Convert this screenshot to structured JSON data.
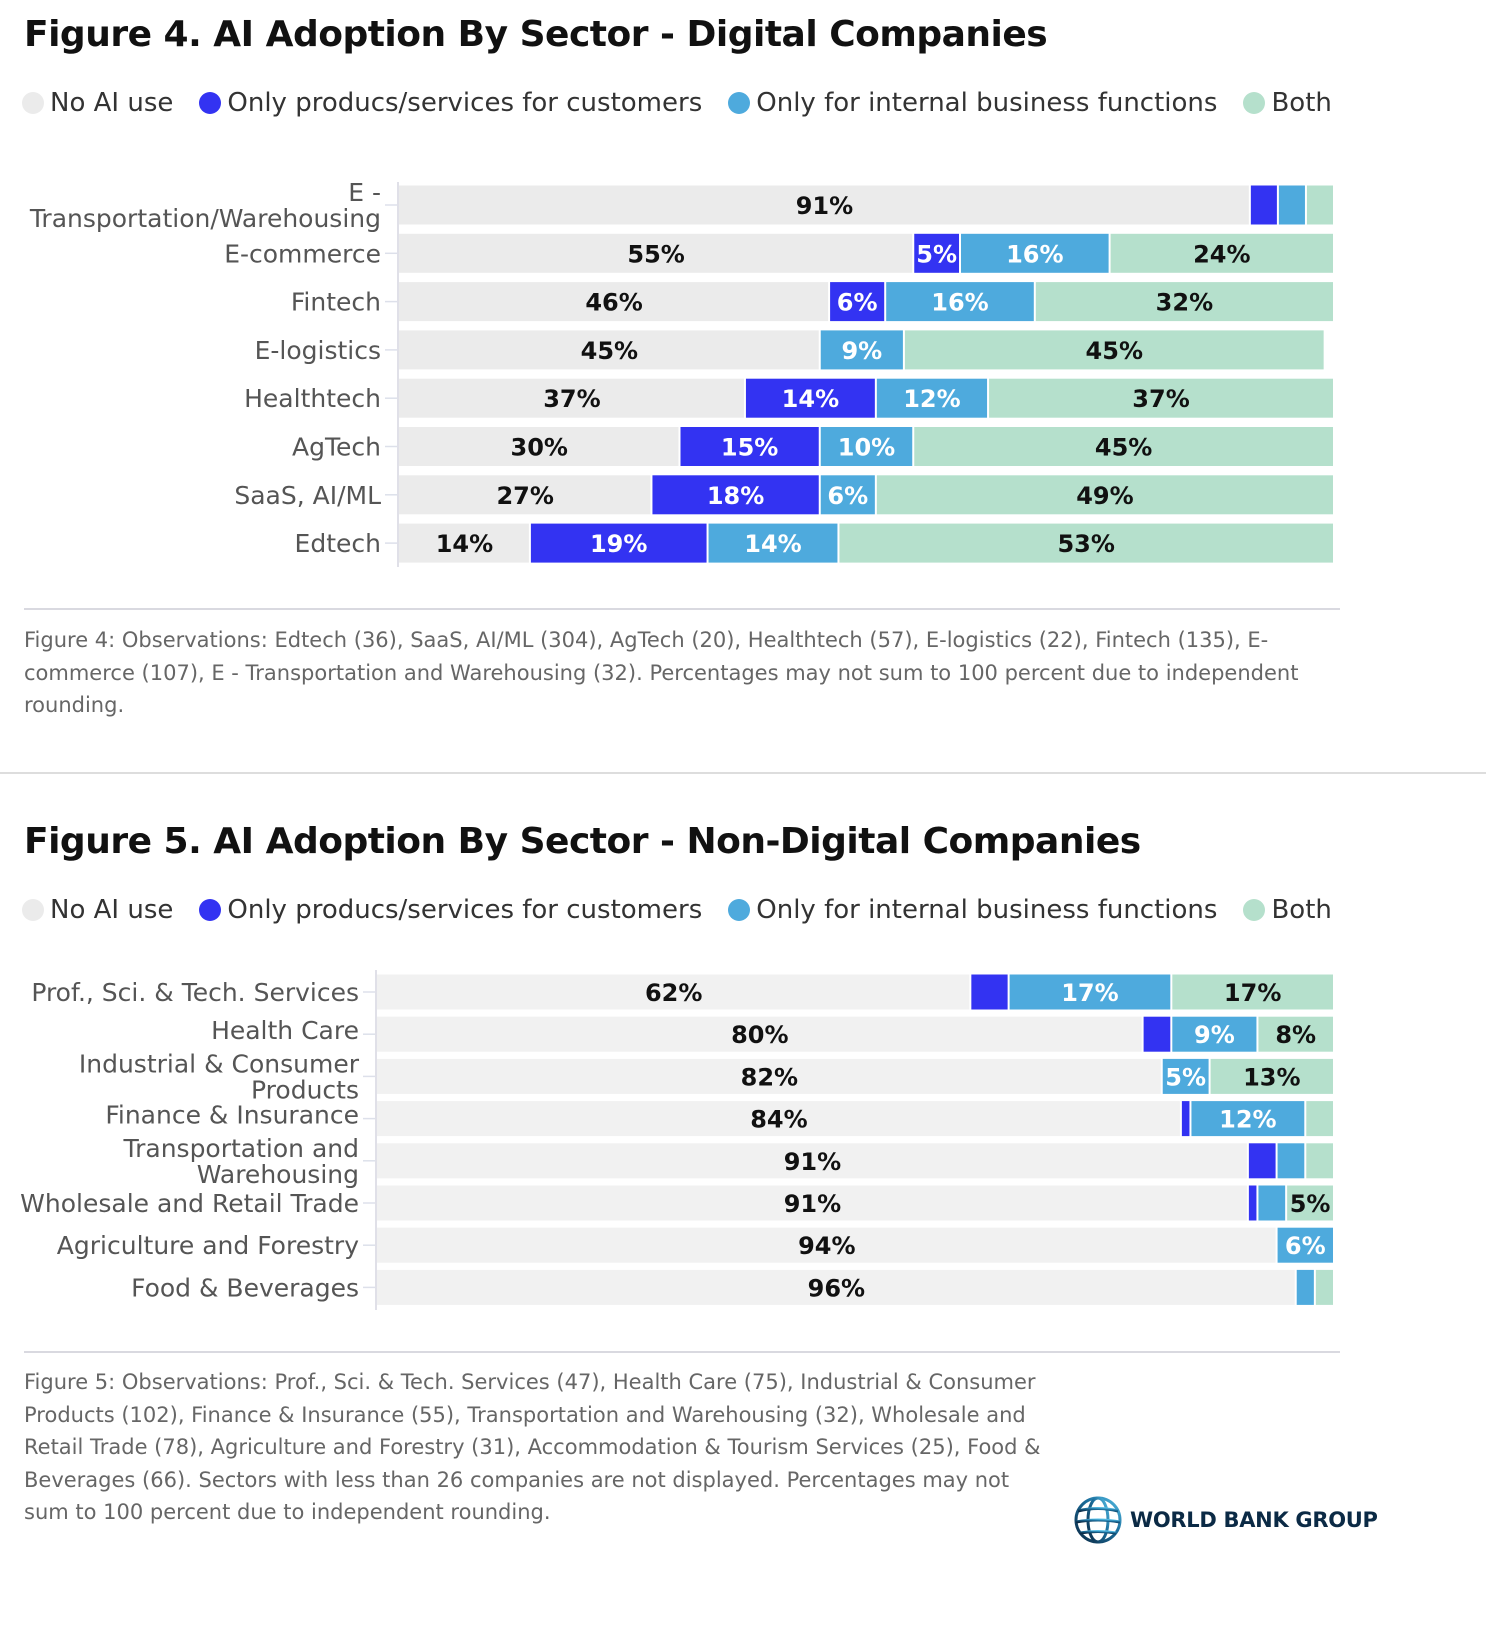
{
  "colors": {
    "no_ai": "#ebebeb",
    "no_ai_fig5": "#f1f1f1",
    "customers": "#3333f2",
    "internal": "#4eaadd",
    "both": "#b5e0cc"
  },
  "legend": [
    {
      "key": "no_ai",
      "label": "No AI use",
      "color": "#ebebeb"
    },
    {
      "key": "customers",
      "label": "Only producs/services for customers",
      "color": "#3333f2"
    },
    {
      "key": "internal",
      "label": "Only for internal business functions",
      "color": "#4eaadd"
    },
    {
      "key": "both",
      "label": "Both",
      "color": "#b5e0cc"
    }
  ],
  "figure4": {
    "title": "Figure 4. AI Adoption By Sector - Digital Companies",
    "footnote": "Figure 4: Observations: Edtech (36), SaaS, AI/ML (304), AgTech (20), Healthtech (57), E-logistics (22), Fintech (135), E-commerce (107), E - Transportation and Warehousing (32). Percentages may not sum to 100 percent due to independent rounding."
  },
  "figure5": {
    "title": "Figure 5. AI Adoption By Sector - Non-Digital Companies",
    "footnote": "Figure 5: Observations: Prof., Sci. & Tech. Services (47), Health Care (75), Industrial & Consumer Products (102), Finance & Insurance (55), Transportation and Warehousing (32), Wholesale and Retail Trade (78), Agriculture and Forestry (31), Accommodation & Tourism Services (25), Food & Beverages (66). Sectors with less than 26 companies are not displayed. Percentages may not sum to 100 percent due to independent rounding."
  },
  "logo": {
    "text": "WORLD BANK GROUP"
  },
  "chart_data": [
    {
      "type": "bar",
      "orientation": "horizontal",
      "stacked": true,
      "title": "Figure 4. AI Adoption By Sector - Digital Companies",
      "xlabel": "",
      "ylabel": "",
      "xlim": [
        0,
        100
      ],
      "legend_position": "top",
      "categories": [
        [
          "E -",
          "Transportation/Warehousing"
        ],
        [
          "E-commerce"
        ],
        [
          "Fintech"
        ],
        [
          "E-logistics"
        ],
        [
          "Healthtech"
        ],
        [
          "AgTech"
        ],
        [
          "SaaS, AI/ML"
        ],
        [
          "Edtech"
        ]
      ],
      "series": [
        {
          "name": "No AI use",
          "key": "no_ai",
          "values": [
            91,
            55,
            46,
            45,
            37,
            30,
            27,
            14
          ],
          "shown": [
            true,
            true,
            true,
            true,
            true,
            true,
            true,
            true
          ]
        },
        {
          "name": "Only producs/services for customers",
          "key": "customers",
          "values": [
            3,
            5,
            6,
            0,
            14,
            15,
            18,
            19
          ],
          "shown": [
            false,
            true,
            true,
            false,
            true,
            true,
            true,
            true
          ]
        },
        {
          "name": "Only for internal business functions",
          "key": "internal",
          "values": [
            3,
            16,
            16,
            9,
            12,
            10,
            6,
            14
          ],
          "shown": [
            false,
            true,
            true,
            true,
            true,
            true,
            true,
            true
          ]
        },
        {
          "name": "Both",
          "key": "both",
          "values": [
            3,
            24,
            32,
            45,
            37,
            45,
            49,
            53
          ],
          "shown": [
            false,
            true,
            true,
            true,
            true,
            true,
            true,
            true
          ]
        }
      ]
    },
    {
      "type": "bar",
      "orientation": "horizontal",
      "stacked": true,
      "title": "Figure 5. AI Adoption By Sector - Non-Digital Companies",
      "xlabel": "",
      "ylabel": "",
      "xlim": [
        0,
        100
      ],
      "legend_position": "top",
      "categories": [
        [
          "Prof., Sci. & Tech. Services"
        ],
        [
          "Health Care"
        ],
        [
          "Industrial & Consumer",
          "Products"
        ],
        [
          "Finance & Insurance"
        ],
        [
          "Transportation and",
          "Warehousing"
        ],
        [
          "Wholesale and Retail Trade"
        ],
        [
          "Agriculture and Forestry"
        ],
        [
          "Food & Beverages"
        ]
      ],
      "series": [
        {
          "name": "No AI use",
          "key": "no_ai",
          "values": [
            62,
            80,
            82,
            84,
            91,
            91,
            94,
            96
          ],
          "shown": [
            true,
            true,
            true,
            true,
            true,
            true,
            true,
            true
          ]
        },
        {
          "name": "Only producs/services for customers",
          "key": "customers",
          "values": [
            4,
            3,
            0,
            1,
            3,
            1,
            0,
            0
          ],
          "shown": [
            false,
            false,
            false,
            false,
            false,
            false,
            false,
            false
          ]
        },
        {
          "name": "Only for internal business functions",
          "key": "internal",
          "values": [
            17,
            9,
            5,
            12,
            3,
            3,
            6,
            2
          ],
          "shown": [
            true,
            true,
            true,
            true,
            false,
            false,
            true,
            false
          ]
        },
        {
          "name": "Both",
          "key": "both",
          "values": [
            17,
            8,
            13,
            3,
            3,
            5,
            0,
            2
          ],
          "shown": [
            true,
            true,
            true,
            false,
            false,
            true,
            false,
            false
          ]
        }
      ]
    }
  ]
}
